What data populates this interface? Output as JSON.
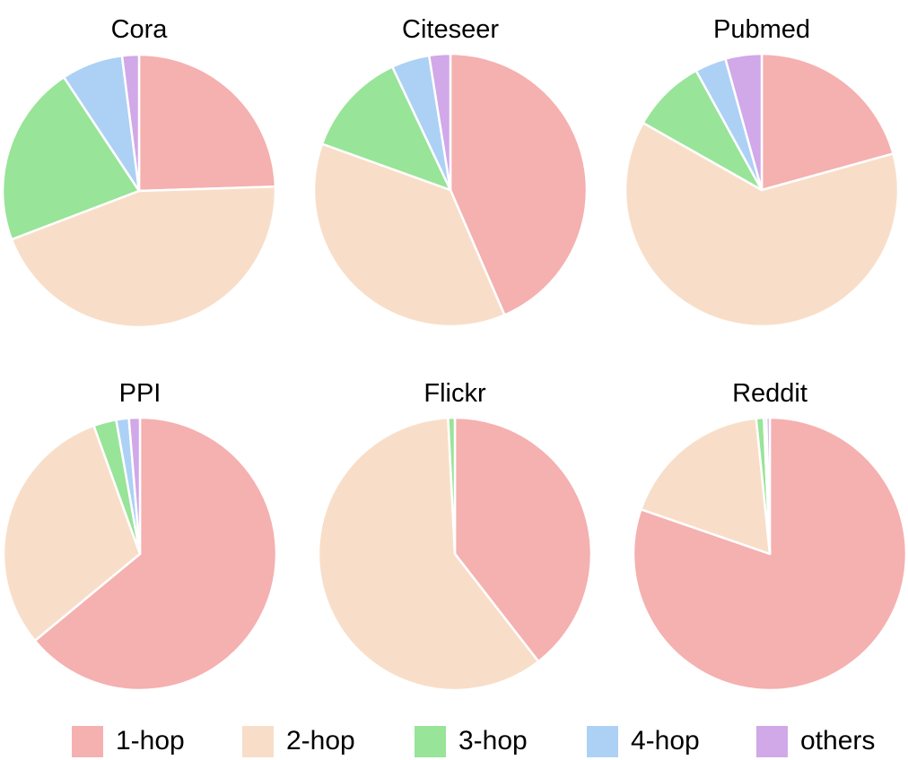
{
  "legend": {
    "entries": [
      {
        "label": "1-hop",
        "color": "#f5b0b0"
      },
      {
        "label": "2-hop",
        "color": "#f8dec8"
      },
      {
        "label": "3-hop",
        "color": "#98e498"
      },
      {
        "label": "4-hop",
        "color": "#acd1f5"
      },
      {
        "label": "others",
        "color": "#d1a8e8"
      }
    ]
  },
  "chart_data": [
    {
      "type": "pie",
      "title": "Cora",
      "categories": [
        "1-hop",
        "2-hop",
        "3-hop",
        "4-hop",
        "others"
      ],
      "values": [
        24.5,
        44.7,
        21.5,
        7.3,
        2.0
      ]
    },
    {
      "type": "pie",
      "title": "Citeseer",
      "categories": [
        "1-hop",
        "2-hop",
        "3-hop",
        "4-hop",
        "others"
      ],
      "values": [
        43.5,
        37.0,
        12.5,
        4.5,
        2.5
      ]
    },
    {
      "type": "pie",
      "title": "Pubmed",
      "categories": [
        "1-hop",
        "2-hop",
        "3-hop",
        "4-hop",
        "others"
      ],
      "values": [
        20.7,
        62.5,
        8.8,
        3.7,
        4.3
      ]
    },
    {
      "type": "pie",
      "title": "PPI",
      "categories": [
        "1-hop",
        "2-hop",
        "3-hop",
        "4-hop",
        "others"
      ],
      "values": [
        64.0,
        30.5,
        2.7,
        1.5,
        1.3
      ]
    },
    {
      "type": "pie",
      "title": "Flickr",
      "categories": [
        "1-hop",
        "2-hop",
        "3-hop",
        "4-hop",
        "others"
      ],
      "values": [
        39.5,
        59.7,
        0.8,
        0.0,
        0.0
      ]
    },
    {
      "type": "pie",
      "title": "Reddit",
      "categories": [
        "1-hop",
        "2-hop",
        "3-hop",
        "4-hop",
        "others"
      ],
      "values": [
        80.3,
        18.1,
        0.9,
        0.3,
        0.4
      ]
    }
  ]
}
